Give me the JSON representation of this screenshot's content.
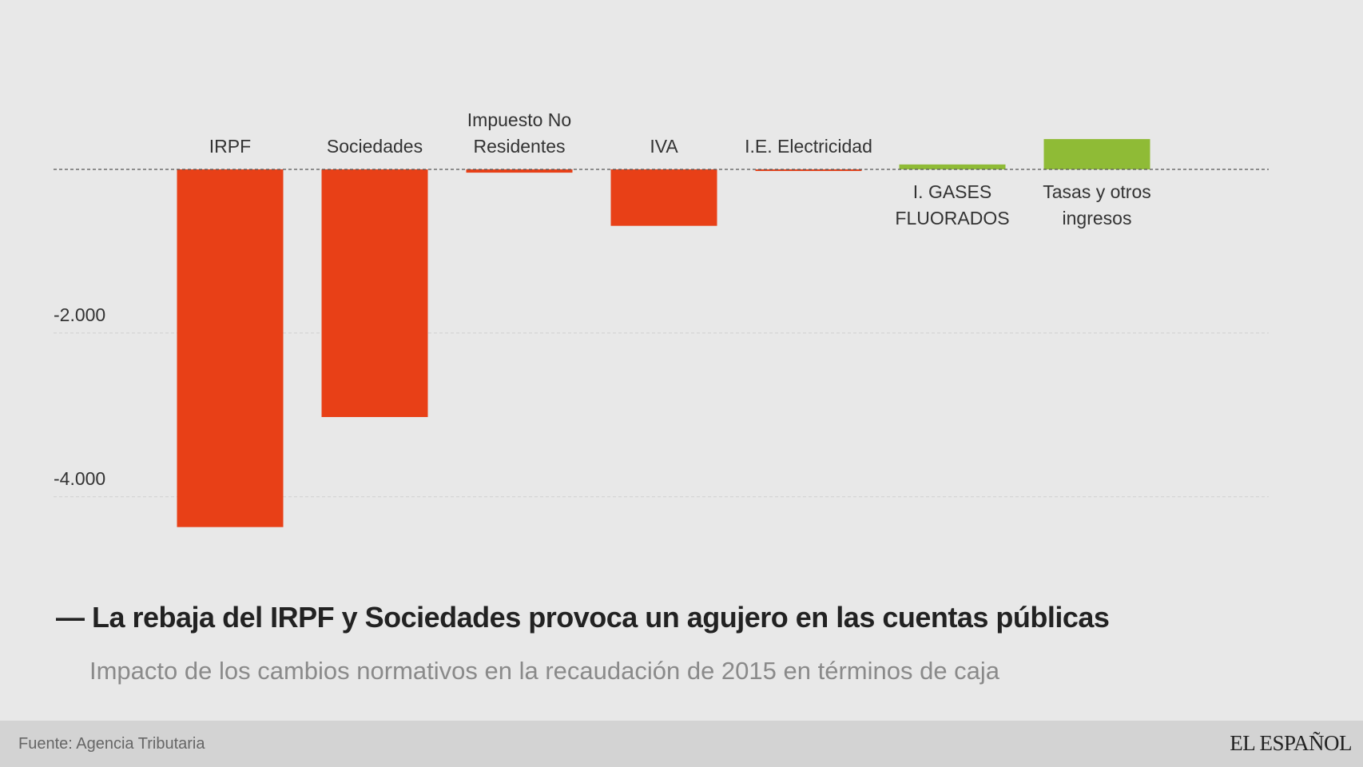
{
  "chart_data": {
    "type": "bar",
    "title": "— La rebaja del IRPF y Sociedades provoca un agujero en las cuentas públicas",
    "subtitle": "Impacto de los cambios normativos en la recaudación de 2015 en términos de caja",
    "source": "Fuente: Agencia Tributaria",
    "brand": "EL ESPAÑOL",
    "categories": [
      "IRPF",
      "Sociedades",
      "Impuesto No Residentes",
      "IVA",
      "I.E. Electricidad",
      "I. GASES FLUORADOS",
      "Tasas y otros ingresos"
    ],
    "values": [
      -4370,
      -3026,
      -40,
      -690,
      -20,
      60,
      370
    ],
    "colors": [
      "#e84017",
      "#e84017",
      "#e84017",
      "#e84017",
      "#e84017",
      "#8fbb36",
      "#8fbb36"
    ],
    "ylim": [
      -4500,
      400
    ],
    "yticks": [
      {
        "value": -4000,
        "label": "-4.000"
      },
      {
        "value": -2000,
        "label": "-2.000"
      }
    ],
    "grid": true
  }
}
